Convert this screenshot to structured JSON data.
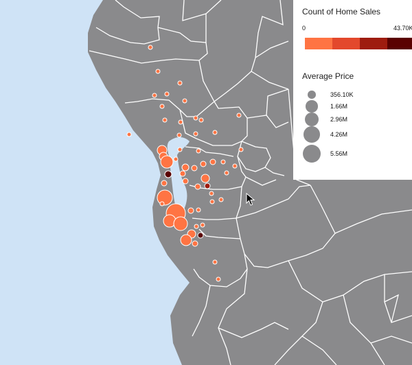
{
  "legend": {
    "color_title": "Count of Home Sales",
    "color_min_label": "0",
    "color_max_label": "43.70K",
    "color_ramp": [
      "#ff7443",
      "#e3482c",
      "#9e1c0f",
      "#5a0000"
    ],
    "size_title": "Average Price",
    "size_entries": [
      {
        "label": "356.10K",
        "value": 356100
      },
      {
        "label": "1.66M",
        "value": 1660000
      },
      {
        "label": "2.96M",
        "value": 2960000
      },
      {
        "label": "4.26M",
        "value": 4260000
      },
      {
        "label": "5.56M",
        "value": 5560000
      }
    ]
  },
  "colors": {
    "water": "#cfe3f6",
    "land": "#8a8a8c",
    "boundary": "#ffffff",
    "legend_size_circle": "#8a8a8c"
  }
}
